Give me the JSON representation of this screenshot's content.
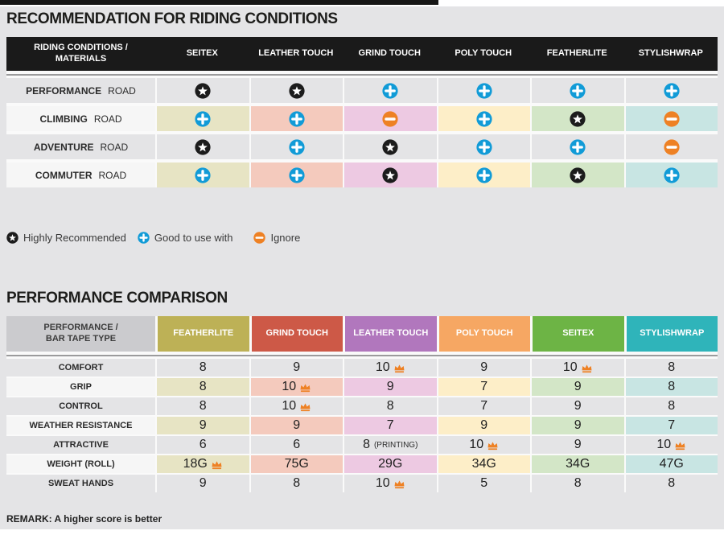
{
  "chart_data": [
    {
      "type": "table",
      "title": "RECOMMENDATION FOR RIDING CONDITIONS",
      "columns": [
        "RIDING CONDITIONS / MATERIALS",
        "SEITEX",
        "LEATHER TOUCH",
        "GRIND TOUCH",
        "POLY TOUCH",
        "FEATHERLITE",
        "STYLISHWRAP"
      ],
      "rows": [
        {
          "condition": "PERFORMANCE",
          "condition_suffix": "ROAD",
          "ratings": [
            "star",
            "star",
            "plus",
            "plus",
            "plus",
            "plus"
          ]
        },
        {
          "condition": "CLIMBING",
          "condition_suffix": "ROAD",
          "ratings": [
            "plus",
            "plus",
            "minus",
            "plus",
            "star",
            "minus"
          ]
        },
        {
          "condition": "ADVENTURE",
          "condition_suffix": "ROAD",
          "ratings": [
            "star",
            "plus",
            "star",
            "plus",
            "plus",
            "minus"
          ]
        },
        {
          "condition": "COMMUTER",
          "condition_suffix": "ROAD",
          "ratings": [
            "plus",
            "plus",
            "star",
            "plus",
            "star",
            "plus"
          ]
        }
      ],
      "legend": [
        {
          "symbol": "star",
          "label": "Highly Recommended"
        },
        {
          "symbol": "plus",
          "label": "Good to use with"
        },
        {
          "symbol": "minus",
          "label": "Ignore"
        }
      ]
    },
    {
      "type": "table",
      "title": "PERFORMANCE COMPARISON",
      "columns": [
        "PERFORMANCE / BAR TAPE TYPE",
        "FEATHERLITE",
        "GRIND TOUCH",
        "LEATHER TOUCH",
        "POLY TOUCH",
        "SEITEX",
        "STYLISHWRAP"
      ],
      "rows": [
        {
          "metric": "COMFORT",
          "values": [
            "8",
            "9",
            "10",
            "9",
            "10",
            "8"
          ],
          "notes": [
            "",
            "",
            "",
            "",
            "",
            ""
          ],
          "crowns": [
            false,
            false,
            true,
            false,
            true,
            false
          ]
        },
        {
          "metric": "GRIP",
          "values": [
            "8",
            "10",
            "9",
            "7",
            "9",
            "8"
          ],
          "notes": [
            "",
            "",
            "",
            "",
            "",
            ""
          ],
          "crowns": [
            false,
            true,
            false,
            false,
            false,
            false
          ]
        },
        {
          "metric": "CONTROL",
          "values": [
            "8",
            "10",
            "8",
            "7",
            "9",
            "8"
          ],
          "notes": [
            "",
            "",
            "",
            "",
            "",
            ""
          ],
          "crowns": [
            false,
            true,
            false,
            false,
            false,
            false
          ]
        },
        {
          "metric": "WEATHER RESISTANCE",
          "values": [
            "9",
            "9",
            "7",
            "9",
            "9",
            "7"
          ],
          "notes": [
            "",
            "",
            "",
            "",
            "",
            ""
          ],
          "crowns": [
            false,
            false,
            false,
            false,
            false,
            false
          ]
        },
        {
          "metric": "ATTRACTIVE",
          "values": [
            "6",
            "6",
            "8",
            "10",
            "9",
            "10"
          ],
          "notes": [
            "",
            "",
            "(PRINTING)",
            "",
            "",
            ""
          ],
          "crowns": [
            false,
            false,
            false,
            true,
            false,
            true
          ]
        },
        {
          "metric": "WEIGHT (ROLL)",
          "values": [
            "18G",
            "75G",
            "29G",
            "34G",
            "34G",
            "47G"
          ],
          "notes": [
            "",
            "",
            "",
            "",
            "",
            ""
          ],
          "crowns": [
            true,
            false,
            false,
            false,
            false,
            false
          ]
        },
        {
          "metric": "SWEAT HANDS",
          "values": [
            "9",
            "8",
            "10",
            "5",
            "8",
            "8"
          ],
          "notes": [
            "",
            "",
            "",
            "",
            "",
            ""
          ],
          "crowns": [
            false,
            false,
            true,
            false,
            false,
            false
          ]
        }
      ],
      "remark": "REMARK: A higher score is better"
    }
  ],
  "colors": {
    "accent_blue": "#119bd7",
    "accent_orange": "#ee8124",
    "star_black": "#1c1c1c",
    "crown_orange": "#ee8124",
    "row_tints": [
      "#e7e4c4",
      "#f4cabd",
      "#edc9e2",
      "#fdeec8",
      "#d3e6c7",
      "#c8e5e3"
    ],
    "header2_colors": [
      "#bdb156",
      "#cd5947",
      "#b177bd",
      "#f6a763",
      "#6db445",
      "#2fb4ba"
    ]
  }
}
